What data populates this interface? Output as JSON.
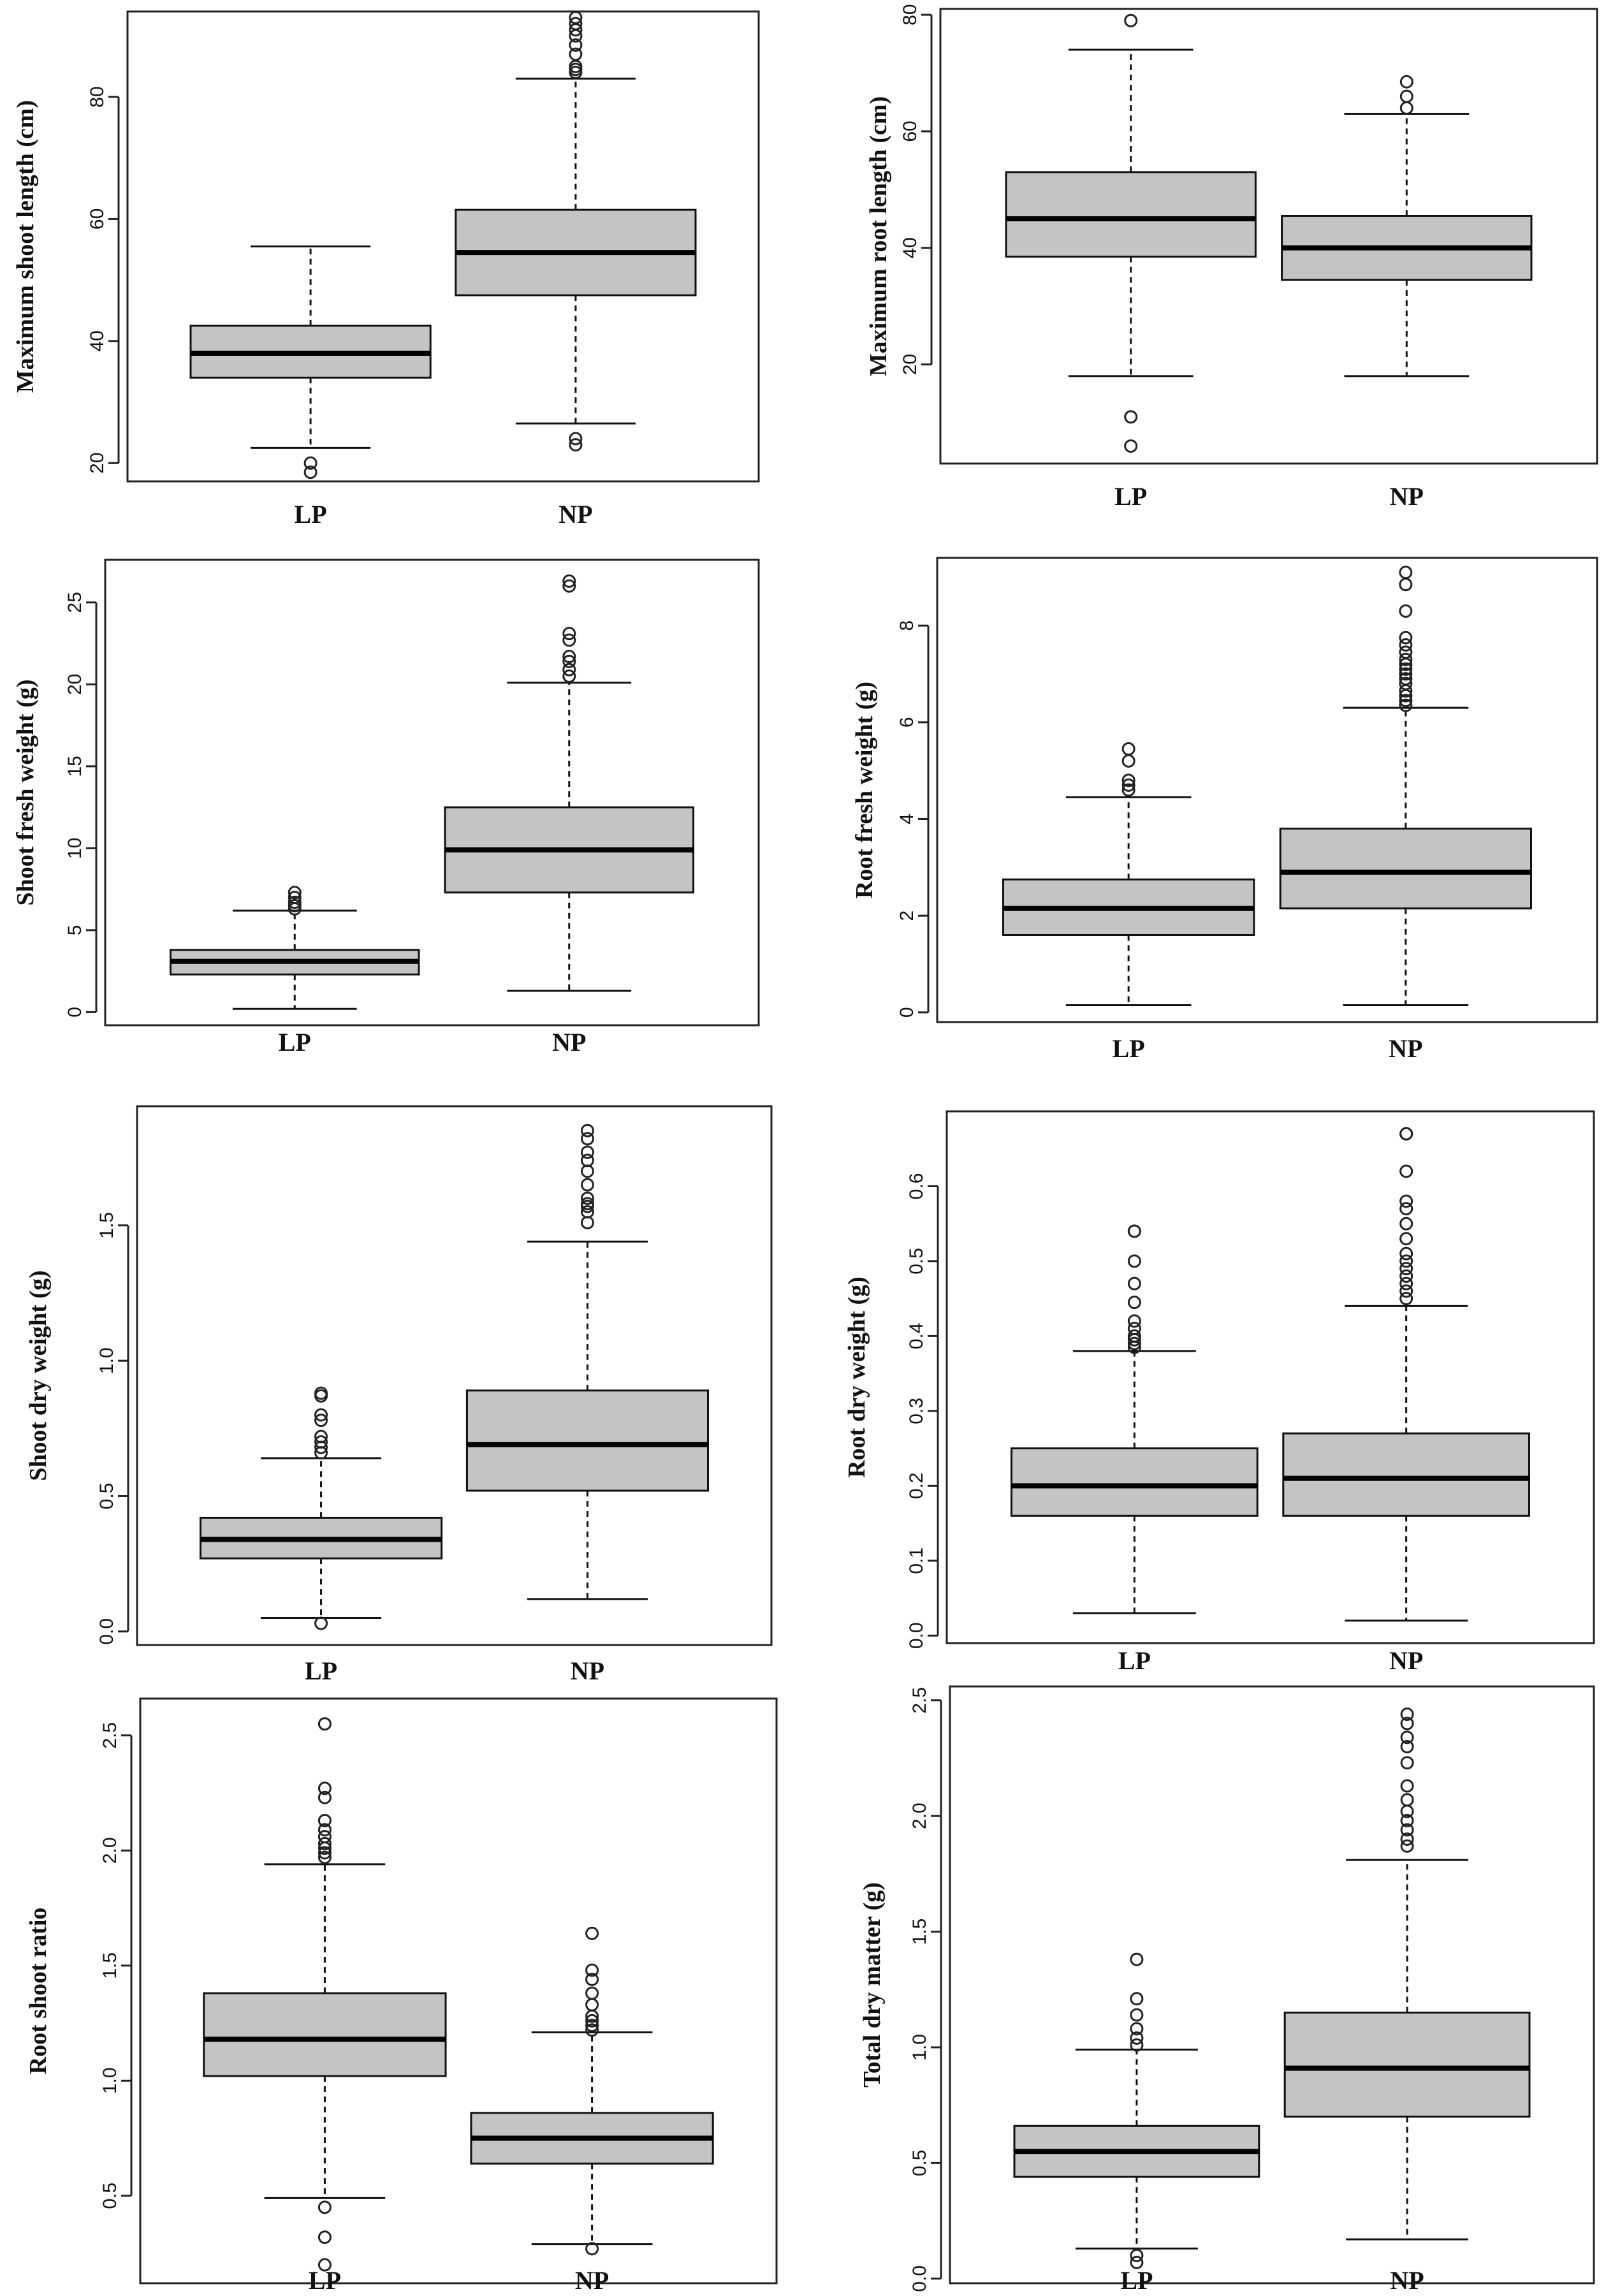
{
  "chart_data": [
    {
      "type": "box",
      "ylabel": "Maximum shoot length (cm)",
      "categories": [
        "LP",
        "NP"
      ],
      "yticks": [
        20,
        40,
        60,
        80
      ],
      "ylim": [
        17,
        94
      ],
      "series": [
        {
          "category": "LP",
          "lower_whisker": 22.5,
          "q1": 34,
          "median": 38,
          "q3": 42.5,
          "upper_whisker": 55.5,
          "outliers": [
            20,
            18.5
          ]
        },
        {
          "category": "NP",
          "lower_whisker": 26.5,
          "q1": 47.5,
          "median": 54.5,
          "q3": 61.5,
          "upper_whisker": 83,
          "outliers": [
            24,
            23,
            84,
            84.5,
            85,
            87,
            88.5,
            90,
            91,
            92,
            93
          ]
        }
      ]
    },
    {
      "type": "box",
      "ylabel": "Maximum root length (cm)",
      "categories": [
        "LP",
        "NP"
      ],
      "yticks": [
        20,
        40,
        60,
        80
      ],
      "ylim": [
        3,
        81
      ],
      "series": [
        {
          "category": "LP",
          "lower_whisker": 18,
          "q1": 38.5,
          "median": 45,
          "q3": 53,
          "upper_whisker": 74,
          "outliers": [
            79,
            11,
            6
          ]
        },
        {
          "category": "NP",
          "lower_whisker": 18,
          "q1": 34.5,
          "median": 40,
          "q3": 45.5,
          "upper_whisker": 63,
          "outliers": [
            64,
            66,
            68.5
          ]
        }
      ]
    },
    {
      "type": "box",
      "ylabel": "Shoot fresh weight (g)",
      "categories": [
        "LP",
        "NP"
      ],
      "yticks": [
        0,
        5,
        10,
        15,
        20,
        25
      ],
      "ylim": [
        -0.8,
        27.6
      ],
      "series": [
        {
          "category": "LP",
          "lower_whisker": 0.2,
          "q1": 2.3,
          "median": 3.1,
          "q3": 3.8,
          "upper_whisker": 6.2,
          "outliers": [
            6.3,
            6.5,
            6.7,
            7.0,
            7.3
          ]
        },
        {
          "category": "NP",
          "lower_whisker": 1.3,
          "q1": 7.3,
          "median": 9.9,
          "q3": 12.5,
          "upper_whisker": 20.1,
          "outliers": [
            20.5,
            20.9,
            21.4,
            21.7,
            22.7,
            23.1,
            26.0,
            26.3
          ]
        }
      ]
    },
    {
      "type": "box",
      "ylabel": "Root fresh weight (g)",
      "categories": [
        "LP",
        "NP"
      ],
      "yticks": [
        0,
        2,
        4,
        6,
        8
      ],
      "ylim": [
        -0.2,
        9.4
      ],
      "series": [
        {
          "category": "LP",
          "lower_whisker": 0.15,
          "q1": 1.6,
          "median": 2.15,
          "q3": 2.75,
          "upper_whisker": 4.45,
          "outliers": [
            4.6,
            4.7,
            4.8,
            5.2,
            5.45
          ]
        },
        {
          "category": "NP",
          "lower_whisker": 0.15,
          "q1": 2.15,
          "median": 2.9,
          "q3": 3.8,
          "upper_whisker": 6.3,
          "outliers": [
            6.35,
            6.45,
            6.55,
            6.65,
            6.8,
            6.9,
            7.0,
            7.1,
            7.2,
            7.3,
            7.45,
            7.6,
            7.75,
            8.3,
            8.85,
            9.1
          ]
        }
      ]
    },
    {
      "type": "box",
      "ylabel": "Shoot dry weight (g)",
      "categories": [
        "LP",
        "NP"
      ],
      "yticks": [
        "0.0",
        "0.5",
        "1.0",
        "1.5"
      ],
      "ylim": [
        -0.05,
        1.94
      ],
      "series": [
        {
          "category": "LP",
          "lower_whisker": 0.05,
          "q1": 0.27,
          "median": 0.34,
          "q3": 0.42,
          "upper_whisker": 0.64,
          "outliers": [
            0.03,
            0.66,
            0.68,
            0.7,
            0.72,
            0.78,
            0.8,
            0.87,
            0.88
          ]
        },
        {
          "category": "NP",
          "lower_whisker": 0.12,
          "q1": 0.52,
          "median": 0.69,
          "q3": 0.89,
          "upper_whisker": 1.44,
          "outliers": [
            1.51,
            1.55,
            1.57,
            1.58,
            1.6,
            1.65,
            1.7,
            1.74,
            1.77,
            1.82,
            1.85
          ]
        }
      ]
    },
    {
      "type": "box",
      "ylabel": "Root dry weight (g)",
      "categories": [
        "LP",
        "NP"
      ],
      "yticks": [
        "0.0",
        "0.1",
        "0.2",
        "0.3",
        "0.4",
        "0.5",
        "0.6"
      ],
      "ylim": [
        -0.01,
        0.7
      ],
      "series": [
        {
          "category": "LP",
          "lower_whisker": 0.03,
          "q1": 0.16,
          "median": 0.2,
          "q3": 0.25,
          "upper_whisker": 0.38,
          "outliers": [
            0.385,
            0.39,
            0.395,
            0.4,
            0.41,
            0.42,
            0.445,
            0.47,
            0.5,
            0.54,
            0.54
          ]
        },
        {
          "category": "NP",
          "lower_whisker": 0.02,
          "q1": 0.16,
          "median": 0.21,
          "q3": 0.27,
          "upper_whisker": 0.44,
          "outliers": [
            0.45,
            0.46,
            0.47,
            0.48,
            0.49,
            0.5,
            0.51,
            0.53,
            0.55,
            0.57,
            0.58,
            0.62,
            0.67,
            0.67
          ]
        }
      ]
    },
    {
      "type": "box",
      "ylabel": "Root shoot  ratio",
      "categories": [
        "LP",
        "NP"
      ],
      "yticks": [
        "0.5",
        "1.0",
        "1.5",
        "2.0",
        "2.5"
      ],
      "ylim": [
        0.12,
        2.66
      ],
      "series": [
        {
          "category": "LP",
          "lower_whisker": 0.49,
          "q1": 1.02,
          "median": 1.18,
          "q3": 1.38,
          "upper_whisker": 1.94,
          "outliers": [
            1.97,
            1.99,
            2.01,
            2.03,
            2.06,
            2.09,
            2.13,
            2.23,
            2.27,
            2.55,
            0.45,
            0.32,
            0.2
          ]
        },
        {
          "category": "NP",
          "lower_whisker": 0.29,
          "q1": 0.64,
          "median": 0.75,
          "q3": 0.86,
          "upper_whisker": 1.21,
          "outliers": [
            1.22,
            1.24,
            1.26,
            1.28,
            1.33,
            1.38,
            1.44,
            1.48,
            1.64,
            0.27
          ]
        }
      ]
    },
    {
      "type": "box",
      "ylabel": "Total dry matter (g)",
      "categories": [
        "LP",
        "NP"
      ],
      "yticks": [
        "0.0",
        "0.5",
        "1.0",
        "1.5",
        "2.0",
        "2.5"
      ],
      "ylim": [
        -0.02,
        2.56
      ],
      "series": [
        {
          "category": "LP",
          "lower_whisker": 0.13,
          "q1": 0.44,
          "median": 0.55,
          "q3": 0.66,
          "upper_whisker": 0.99,
          "outliers": [
            1.01,
            1.04,
            1.08,
            1.14,
            1.21,
            1.38,
            0.1,
            0.07
          ]
        },
        {
          "category": "NP",
          "lower_whisker": 0.17,
          "q1": 0.7,
          "median": 0.91,
          "q3": 1.15,
          "upper_whisker": 1.81,
          "outliers": [
            1.87,
            1.9,
            1.94,
            1.98,
            2.02,
            2.07,
            2.13,
            2.23,
            2.3,
            2.34,
            2.4,
            2.44
          ]
        }
      ]
    }
  ]
}
